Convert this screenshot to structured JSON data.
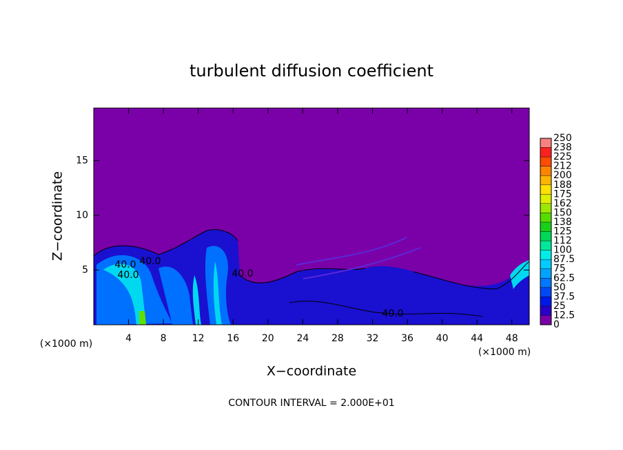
{
  "chart_data": {
    "type": "contour",
    "title": "turbulent diffusion coefficient",
    "x_label": "X−coordinate",
    "y_label": "Z−coordinate",
    "x_unit_left": "(×1000 m)",
    "x_unit_right": "(×1000 m)",
    "footer": "CONTOUR INTERVAL = 2.000E+01",
    "xlim": [
      0,
      50
    ],
    "xticks": [
      4,
      8,
      12,
      16,
      20,
      24,
      28,
      32,
      36,
      40,
      44,
      48
    ],
    "ylim": [
      0,
      19.8
    ],
    "yticks": [
      5,
      10,
      15
    ],
    "contour_labels": [
      "40.0",
      "40.0",
      "40.0",
      "40.0",
      "40.0"
    ],
    "colorbar": {
      "levels": [
        0,
        12.5,
        25,
        37.5,
        50,
        62.5,
        75,
        87.5,
        100,
        112,
        125,
        138,
        150,
        162,
        175,
        188,
        200,
        212,
        225,
        238,
        250
      ],
      "colors": [
        "#7a00a8",
        "#2a00c8",
        "#0018e8",
        "#0048f4",
        "#0078ff",
        "#00a4ff",
        "#00ccff",
        "#00eee8",
        "#00e89a",
        "#00d858",
        "#18d018",
        "#58dc00",
        "#9ce800",
        "#dcf000",
        "#ffe000",
        "#ffb400",
        "#ff8400",
        "#ff4c00",
        "#ff2020",
        "#f88080"
      ]
    }
  }
}
